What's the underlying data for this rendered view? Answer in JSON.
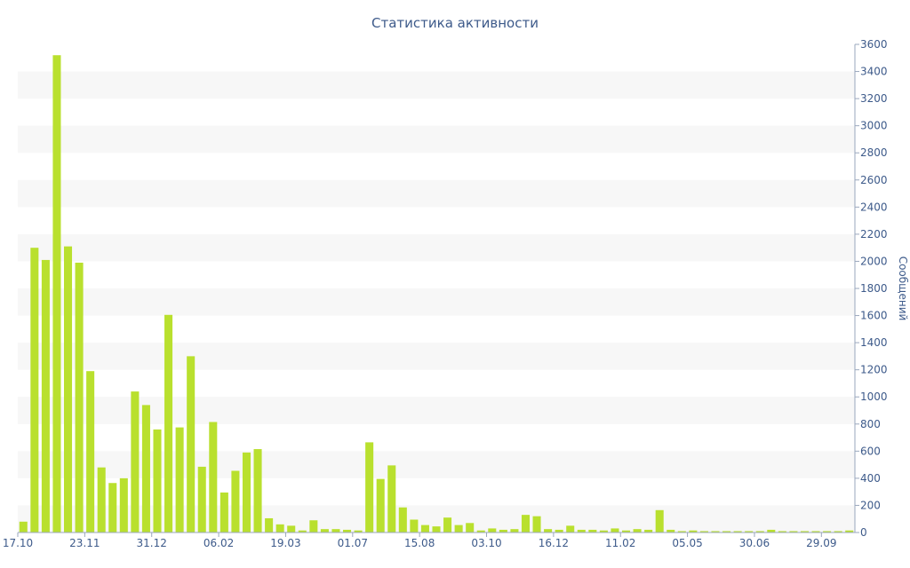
{
  "chart_data": {
    "type": "bar",
    "title": "Статистика активности",
    "xlabel": "",
    "ylabel": "Сообщений",
    "ylim": [
      0,
      3600
    ],
    "y_ticks": [
      0,
      200,
      400,
      600,
      800,
      1000,
      1200,
      1400,
      1600,
      1800,
      2000,
      2200,
      2400,
      2600,
      2800,
      3000,
      3200,
      3400,
      3600
    ],
    "y_axis_side": "right",
    "grid": "alternating horizontal bands",
    "x_tick_labels": [
      {
        "index": 0,
        "label": "17.10"
      },
      {
        "index": 6,
        "label": "23.11"
      },
      {
        "index": 12,
        "label": "31.12"
      },
      {
        "index": 18,
        "label": "06.02"
      },
      {
        "index": 24,
        "label": "19.03"
      },
      {
        "index": 30,
        "label": "01.07"
      },
      {
        "index": 36,
        "label": "15.08"
      },
      {
        "index": 42,
        "label": "03.10"
      },
      {
        "index": 48,
        "label": "16.12"
      },
      {
        "index": 54,
        "label": "11.02"
      },
      {
        "index": 60,
        "label": "05.05"
      },
      {
        "index": 66,
        "label": "30.06"
      },
      {
        "index": 72,
        "label": "29.09"
      }
    ],
    "values": [
      80,
      2100,
      2010,
      3520,
      2110,
      1990,
      1190,
      480,
      365,
      400,
      1040,
      940,
      760,
      1605,
      775,
      1300,
      485,
      815,
      295,
      455,
      590,
      615,
      105,
      60,
      50,
      15,
      90,
      25,
      25,
      20,
      15,
      665,
      395,
      495,
      185,
      95,
      55,
      45,
      110,
      55,
      70,
      15,
      30,
      20,
      25,
      130,
      120,
      25,
      20,
      50,
      20,
      20,
      15,
      30,
      15,
      25,
      20,
      165,
      20,
      10,
      15,
      10,
      10,
      10,
      10,
      10,
      10,
      20,
      10,
      10,
      10,
      10,
      10,
      10,
      15
    ],
    "colors": {
      "bar": "#b9e02e",
      "text": "#3d5a8a",
      "band": "#f7f7f7",
      "axis": "#9aa7bd"
    }
  }
}
